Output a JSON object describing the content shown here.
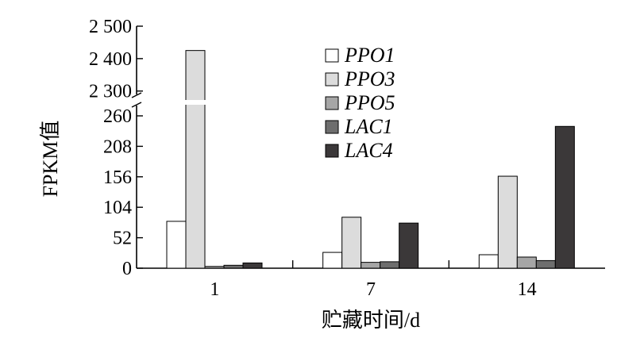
{
  "chart_data": {
    "type": "bar",
    "xlabel": "贮藏时间/d",
    "ylabel": "FPKM值",
    "categories": [
      "1",
      "7",
      "14"
    ],
    "series": [
      {
        "name": "PPO1",
        "values": [
          80,
          27,
          23
        ],
        "color": "#ffffff"
      },
      {
        "name": "PPO3",
        "values": [
          2425,
          87,
          157
        ],
        "color": "#dcdcdc"
      },
      {
        "name": "PPO5",
        "values": [
          3,
          10,
          19
        ],
        "color": "#a6a6a6"
      },
      {
        "name": "LAC1",
        "values": [
          5,
          11,
          13
        ],
        "color": "#6e6e6e"
      },
      {
        "name": "LAC4",
        "values": [
          9,
          77,
          242
        ],
        "color": "#3b3839"
      }
    ],
    "y_axis": {
      "lower_segment": {
        "range": [
          0,
          260
        ],
        "ticks": [
          "0",
          "52",
          "104",
          "156",
          "208",
          "260"
        ]
      },
      "upper_segment": {
        "range": [
          2270,
          2500
        ],
        "ticks": [
          "2 300",
          "2 400",
          "2 500"
        ]
      },
      "break_between": [
        260,
        2270
      ]
    },
    "legend_position": "top-center",
    "grid": false
  }
}
